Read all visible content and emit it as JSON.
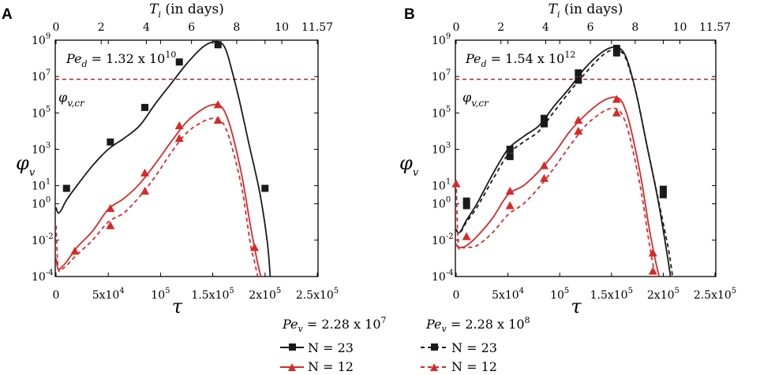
{
  "top_axis": {
    "label_main": "T",
    "label_sub": "i",
    "label_rest": " (in days)",
    "ticks": [
      "0",
      "2",
      "4",
      "6",
      "8",
      "10",
      "11.57"
    ],
    "tick_days": [
      0,
      2,
      4,
      6,
      8,
      10,
      11.57
    ],
    "max_days": 11.57
  },
  "legend": {
    "col1_title": "Pe",
    "col1_sub": "v",
    "col1_value": " = 2.28 x 10",
    "col1_exp": "7",
    "col2_title": "Pe",
    "col2_sub": "v",
    "col2_value": " = 2.28 x 10",
    "col2_exp": "8",
    "n23": "N = 23",
    "n12": "N = 12"
  },
  "colors": {
    "black": "#1a1a1a",
    "red": "#d62a2a",
    "critical": "#b22222"
  },
  "chart_data": [
    {
      "panel": "A",
      "type": "line",
      "title": "",
      "xlabel": "τ",
      "ylabel": "φ",
      "ylabel_sub": "v",
      "xlim": [
        0,
        250000
      ],
      "ylim_log10": [
        -4,
        9
      ],
      "xticks": [
        0,
        50000,
        100000,
        150000,
        200000,
        250000
      ],
      "xtick_main": [
        "0",
        "5x10",
        "10",
        "1.5x10",
        "2x10",
        "2.5x10"
      ],
      "xtick_exp": [
        "",
        "4",
        "5",
        "5",
        "5",
        "5"
      ],
      "yticks_log10": [
        -4,
        -2,
        0,
        1,
        3,
        5,
        7,
        9
      ],
      "ytick_exp": [
        "-4",
        "-2",
        "0",
        "1",
        "3",
        "5",
        "7",
        "9"
      ],
      "pe_d_text": "Pe",
      "pe_d_sub": "d",
      "pe_d_value": " = 1.32 x 10",
      "pe_d_exp": "10",
      "critical_label": "φ",
      "critical_sub": "v,cr",
      "critical_log10": 6.85,
      "series": [
        {
          "name": "N = 23, Pe_v = 2.28 x 10^7",
          "color": "#1a1a1a",
          "dash": "",
          "marker": "square",
          "x": [
            0,
            2000,
            5000,
            10000,
            20000,
            35000,
            50000,
            65000,
            80000,
            95000,
            110000,
            125000,
            140000,
            150000,
            158000,
            163000,
            168000,
            175000,
            185000,
            195000,
            202000,
            205000
          ],
          "y": [
            -0.2,
            -0.5,
            -0.35,
            0.2,
            1.0,
            2.1,
            3.0,
            3.6,
            4.3,
            5.5,
            6.6,
            7.7,
            8.6,
            8.9,
            8.85,
            8.4,
            7.4,
            5.8,
            3.2,
            0.6,
            -2.0,
            -4.0
          ],
          "marker_x": [
            10000,
            52000,
            85000,
            118000,
            155000,
            200000
          ],
          "marker_y": [
            0.85,
            3.4,
            5.3,
            7.8,
            8.75,
            0.85
          ]
        },
        {
          "name": "N = 12, Pe_v = 2.28 x 10^7",
          "color": "#d62a2a",
          "dash": "",
          "marker": "triangle",
          "x": [
            0,
            2000,
            5000,
            10000,
            20000,
            35000,
            50000,
            65000,
            80000,
            95000,
            110000,
            125000,
            140000,
            150000,
            157000,
            162000,
            168000,
            178000,
            186000,
            192000,
            196000
          ],
          "y": [
            -3.0,
            -3.6,
            -3.5,
            -3.2,
            -2.4,
            -1.5,
            -0.3,
            0.3,
            1.1,
            2.2,
            3.4,
            4.5,
            5.2,
            5.45,
            5.4,
            5.0,
            4.0,
            1.5,
            -1.2,
            -3.0,
            -4.0
          ],
          "marker_x": [
            18000,
            52000,
            85000,
            118000,
            155000,
            190000
          ],
          "marker_y": [
            -2.6,
            -0.25,
            1.7,
            4.3,
            5.45,
            -2.4
          ]
        },
        {
          "name": "N = 12, Pe_v = 2.28 x 10^8",
          "color": "#d62a2a",
          "dash": "5,4",
          "marker": "triangle",
          "x": [
            0,
            2000,
            5000,
            10000,
            20000,
            35000,
            50000,
            65000,
            80000,
            95000,
            110000,
            125000,
            140000,
            150000,
            157000,
            162000,
            168000,
            178000,
            186000,
            190000,
            193000
          ],
          "y": [
            -1.2,
            -3.5,
            -3.6,
            -3.4,
            -2.8,
            -2.0,
            -1.0,
            -0.5,
            0.4,
            1.5,
            2.8,
            3.9,
            4.5,
            4.7,
            4.6,
            4.2,
            3.2,
            0.8,
            -2.2,
            -3.2,
            -4.0
          ],
          "marker_x": [
            52000,
            85000,
            118000,
            155000
          ],
          "marker_y": [
            -1.2,
            0.7,
            3.6,
            4.6
          ]
        }
      ]
    },
    {
      "panel": "B",
      "type": "line",
      "title": "",
      "xlabel": "τ",
      "ylabel": "φ",
      "ylabel_sub": "v",
      "xlim": [
        0,
        250000
      ],
      "ylim_log10": [
        -4,
        9
      ],
      "xticks": [
        0,
        50000,
        100000,
        150000,
        200000,
        250000
      ],
      "xtick_main": [
        "0",
        "5x10",
        "10",
        "1.5x10",
        "2x10",
        "2.5x10"
      ],
      "xtick_exp": [
        "",
        "4",
        "5",
        "5",
        "5",
        "5"
      ],
      "yticks_log10": [
        -4,
        -2,
        0,
        1,
        3,
        5,
        7,
        9
      ],
      "ytick_exp": [
        "-4",
        "-2",
        "0",
        "1",
        "3",
        "5",
        "7",
        "9"
      ],
      "pe_d_text": "Pe",
      "pe_d_sub": "d",
      "pe_d_value": " = 1.54 x 10",
      "pe_d_exp": "12",
      "critical_label": "φ",
      "critical_sub": "v,cr",
      "critical_log10": 6.85,
      "series": [
        {
          "name": "N = 23, Pe_v = 2.28 x 10^7",
          "color": "#1a1a1a",
          "dash": "",
          "marker": "square",
          "x": [
            0,
            2000,
            5000,
            10000,
            20000,
            35000,
            50000,
            65000,
            80000,
            95000,
            110000,
            125000,
            140000,
            150000,
            158000,
            163000,
            168000,
            175000,
            185000,
            195000,
            203000,
            207000
          ],
          "y": [
            -1.4,
            -1.6,
            -1.45,
            -0.9,
            0.0,
            1.6,
            3.0,
            3.7,
            4.3,
            5.4,
            6.4,
            7.5,
            8.3,
            8.6,
            8.55,
            8.2,
            7.4,
            5.8,
            3.0,
            0.2,
            -2.5,
            -4.0
          ],
          "marker_x": [
            10000,
            52000,
            85000,
            118000,
            155000,
            200000
          ],
          "marker_y": [
            0.15,
            3.0,
            4.7,
            7.2,
            8.55,
            0.8
          ]
        },
        {
          "name": "N = 23, Pe_v = 2.28 x 10^8",
          "color": "#1a1a1a",
          "dash": "5,4",
          "marker": "square",
          "x": [
            0,
            2000,
            5000,
            10000,
            20000,
            35000,
            50000,
            65000,
            80000,
            95000,
            110000,
            125000,
            140000,
            150000,
            158000,
            163000,
            168000,
            175000,
            185000,
            195000,
            205000,
            209000
          ],
          "y": [
            -1.4,
            -1.6,
            -1.5,
            -1.0,
            -0.2,
            1.3,
            2.7,
            3.4,
            4.0,
            5.1,
            6.2,
            7.2,
            8.1,
            8.45,
            8.4,
            8.1,
            7.3,
            5.8,
            3.0,
            0.3,
            -2.5,
            -4.0
          ],
          "marker_x": [
            10000,
            52000,
            85000,
            118000,
            155000,
            200000
          ],
          "marker_y": [
            -0.1,
            2.6,
            4.4,
            6.8,
            8.3,
            0.5
          ]
        },
        {
          "name": "N = 12, Pe_v = 2.28 x 10^7",
          "color": "#d62a2a",
          "dash": "",
          "marker": "triangle",
          "x": [
            0,
            2000,
            5000,
            10000,
            20000,
            35000,
            50000,
            65000,
            80000,
            95000,
            110000,
            125000,
            140000,
            150000,
            157000,
            162000,
            168000,
            178000,
            186000,
            192000,
            196000
          ],
          "y": [
            -2.2,
            -2.4,
            -2.4,
            -2.3,
            -1.8,
            -0.8,
            0.5,
            1.0,
            1.8,
            2.8,
            4.0,
            4.9,
            5.6,
            5.85,
            5.8,
            5.4,
            4.3,
            1.6,
            -1.2,
            -3.0,
            -4.0
          ],
          "marker_x": [
            10000,
            52000,
            85000,
            118000,
            155000,
            190000
          ],
          "marker_y": [
            -1.8,
            0.7,
            2.1,
            4.6,
            5.75,
            -2.7
          ]
        },
        {
          "name": "N = 12, Pe_v = 2.28 x 10^8",
          "color": "#d62a2a",
          "dash": "5,4",
          "marker": "triangle",
          "x": [
            0,
            2000,
            5000,
            10000,
            20000,
            35000,
            50000,
            65000,
            80000,
            95000,
            110000,
            125000,
            140000,
            150000,
            157000,
            162000,
            168000,
            178000,
            186000,
            190000,
            193000
          ],
          "y": [
            1.2,
            -2.2,
            -2.4,
            -2.4,
            -2.3,
            -1.6,
            -0.6,
            0.0,
            0.9,
            2.0,
            3.2,
            4.3,
            5.0,
            5.25,
            5.15,
            4.7,
            3.6,
            0.9,
            -2.0,
            -3.3,
            -4.0
          ],
          "marker_x": [
            0,
            52000,
            85000,
            118000,
            155000,
            190000
          ],
          "marker_y": [
            1.1,
            -0.1,
            1.4,
            4.0,
            5.0,
            -3.7
          ]
        }
      ]
    }
  ]
}
